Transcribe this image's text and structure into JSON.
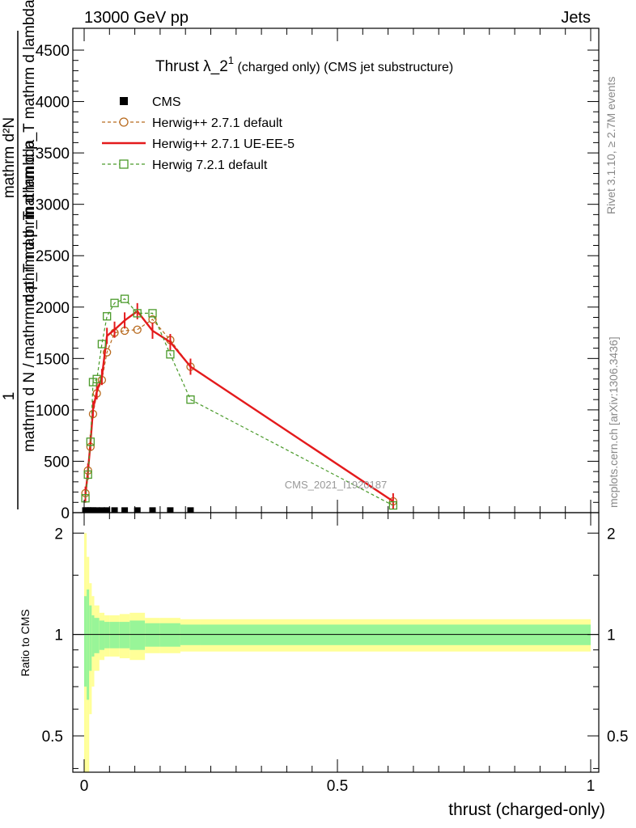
{
  "header": {
    "energy_label": "13000 GeV pp",
    "process_label": "Jets"
  },
  "side_labels": {
    "rivet": "Rivet 3.1.10, ≥ 2.7M events",
    "mcplots": "mcplots.cern.ch [arXiv:1306.3436]"
  },
  "watermark": "CMS_2021_I1920187",
  "main_title": {
    "text": "Thrust λ_2",
    "superscript": "1",
    "suffix": " (charged only) (CMS jet substructure)"
  },
  "ylabel_main": {
    "numerator": "mathrm d²N",
    "denominator": "mathrm d N / mathrm d p_T mathrm d lambda",
    "one": "1",
    "extra_line1": "mathrm d p_T mathrm d lambda",
    "extra_line2": "mathrm d p_T"
  },
  "chart_data": [
    {
      "type": "line",
      "title": "Thrust λ_2¹ (charged only) (CMS jet substructure)",
      "ylim": [
        0,
        4700
      ],
      "xlim": [
        -0.01,
        1.0
      ],
      "yticks": [
        0,
        500,
        1000,
        1500,
        2000,
        2500,
        3000,
        3500,
        4000,
        4500
      ],
      "ytick_labels": [
        "0",
        "500",
        "1000",
        "1500",
        "2000",
        "2500",
        "3000",
        "3500",
        "4000",
        "4500"
      ],
      "legend_position": "top-left",
      "series": [
        {
          "name": "CMS",
          "style": "marker",
          "color": "#000000",
          "x": [
            0.0025,
            0.0075,
            0.0125,
            0.0175,
            0.025,
            0.035,
            0.045,
            0.06,
            0.08,
            0.105,
            0.135,
            0.17,
            0.21
          ],
          "y": [
            5,
            5,
            5,
            5,
            5,
            5,
            5,
            5,
            5,
            5,
            5,
            5,
            5
          ]
        },
        {
          "name": "Herwig++ 2.7.1 default",
          "style": "dashed-circle",
          "color": "#b86a1e",
          "x": [
            0.0025,
            0.0075,
            0.0125,
            0.0175,
            0.025,
            0.035,
            0.045,
            0.06,
            0.08,
            0.105,
            0.135,
            0.17,
            0.21,
            0.61
          ],
          "y": [
            190,
            410,
            640,
            960,
            1160,
            1290,
            1560,
            1750,
            1770,
            1780,
            1880,
            1680,
            1420,
            110
          ]
        },
        {
          "name": "Herwig++ 2.7.1 UE-EE-5",
          "style": "solid",
          "color": "#e41a1c",
          "x": [
            0.0025,
            0.0075,
            0.0125,
            0.0175,
            0.025,
            0.035,
            0.045,
            0.06,
            0.08,
            0.105,
            0.135,
            0.17,
            0.21,
            0.61
          ],
          "y": [
            175,
            400,
            680,
            1010,
            1180,
            1320,
            1720,
            1780,
            1870,
            1960,
            1770,
            1660,
            1420,
            110
          ]
        },
        {
          "name": "Herwig 7.2.1 default",
          "style": "dashed-square",
          "color": "#4a9a2a",
          "x": [
            0.0025,
            0.0075,
            0.0125,
            0.0175,
            0.025,
            0.035,
            0.045,
            0.06,
            0.08,
            0.105,
            0.135,
            0.17,
            0.21,
            0.61
          ],
          "y": [
            140,
            370,
            690,
            1270,
            1300,
            1640,
            1910,
            2040,
            2080,
            1940,
            1940,
            1540,
            1100,
            70
          ]
        }
      ]
    },
    {
      "type": "area",
      "ylabel": "Ratio to CMS",
      "ylim": [
        0.39,
        2.3
      ],
      "xlim": [
        -0.01,
        1.0
      ],
      "yticks": [
        0.5,
        1,
        2
      ],
      "ytick_labels": [
        "0.5",
        "1",
        "2"
      ],
      "xticks": [
        0,
        0.5,
        1
      ],
      "xtick_labels": [
        "0",
        "0.5",
        "1"
      ],
      "xlabel": "thrust (charged-only)",
      "reference_line": 1,
      "bins": [
        0,
        0.005,
        0.01,
        0.015,
        0.02,
        0.03,
        0.04,
        0.05,
        0.07,
        0.09,
        0.12,
        0.15,
        0.19,
        0.23,
        1.0
      ],
      "inner_band": [
        0.3,
        0.36,
        0.22,
        0.14,
        0.12,
        0.1,
        0.09,
        0.09,
        0.09,
        0.1,
        0.08,
        0.08,
        0.07,
        0.07
      ],
      "outer_band": [
        1.0,
        0.7,
        0.42,
        0.3,
        0.22,
        0.16,
        0.14,
        0.14,
        0.15,
        0.16,
        0.12,
        0.12,
        0.11,
        0.11
      ],
      "inner_color": "#98f598",
      "outer_color": "#ffff98"
    }
  ]
}
